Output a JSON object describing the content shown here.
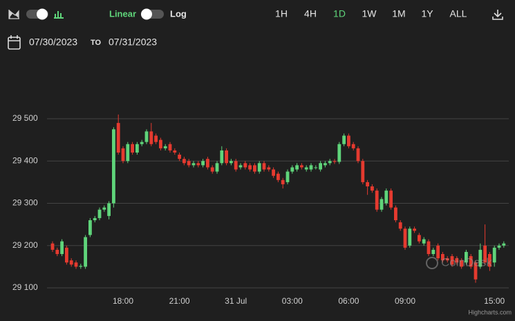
{
  "toolbar": {
    "linear": "Linear",
    "log": "Log",
    "ranges": [
      "1H",
      "4H",
      "1D",
      "1W",
      "1M",
      "1Y",
      "ALL"
    ],
    "active_range_index": 2
  },
  "date_range": {
    "from": "07/30/2023",
    "separator": "TO",
    "to": "07/31/2023"
  },
  "chart_data": {
    "type": "candlestick",
    "categories": [
      null,
      null,
      null,
      null,
      null,
      null,
      null,
      null,
      null,
      null,
      null,
      null,
      null,
      null,
      null,
      "18:00",
      null,
      null,
      null,
      null,
      null,
      null,
      null,
      null,
      null,
      null,
      null,
      "21:00",
      null,
      null,
      null,
      null,
      null,
      null,
      null,
      null,
      null,
      null,
      null,
      "31 Jul",
      null,
      null,
      null,
      null,
      null,
      null,
      null,
      null,
      null,
      null,
      null,
      "03:00",
      null,
      null,
      null,
      null,
      null,
      null,
      null,
      null,
      null,
      null,
      null,
      "06:00",
      null,
      null,
      null,
      null,
      null,
      null,
      null,
      null,
      null,
      null,
      null,
      "09:00",
      null,
      null,
      null,
      null,
      null,
      null,
      null,
      null,
      null,
      null,
      null,
      null,
      null,
      null,
      null,
      null,
      null,
      null,
      "15:00",
      null,
      null
    ],
    "open": [
      29205,
      29190,
      29180,
      29195,
      29165,
      29160,
      29150,
      29150,
      29225,
      29260,
      29265,
      29285,
      29270,
      29300,
      29490,
      29430,
      29400,
      29440,
      29420,
      29440,
      29445,
      29470,
      29460,
      29450,
      29430,
      29440,
      29425,
      29415,
      29405,
      29400,
      29390,
      29395,
      29390,
      29405,
      29385,
      29375,
      29395,
      29425,
      29395,
      29400,
      29385,
      29395,
      29390,
      29390,
      29375,
      29395,
      29385,
      29380,
      29370,
      29355,
      29350,
      29375,
      29380,
      29390,
      29380,
      29380,
      29385,
      29380,
      29390,
      29395,
      29400,
      29398,
      29440,
      29460,
      29440,
      29430,
      29400,
      29350,
      29340,
      29330,
      29285,
      29300,
      29330,
      29290,
      29255,
      29240,
      29200,
      29240,
      29225,
      29205,
      29210,
      29180,
      29200,
      29180,
      29170,
      29175,
      29170,
      29165,
      29160,
      29175,
      29160,
      29150,
      29200,
      29180,
      29160,
      29195,
      29200
    ],
    "high": [
      29210,
      29195,
      29215,
      29200,
      29170,
      29165,
      29157,
      29225,
      29265,
      29270,
      29290,
      29295,
      29305,
      29480,
      29510,
      29435,
      29445,
      29445,
      29445,
      29450,
      29475,
      29490,
      29465,
      29455,
      29440,
      29445,
      29430,
      29420,
      29410,
      29405,
      29400,
      29400,
      29405,
      29410,
      29390,
      29400,
      29435,
      29430,
      29405,
      29405,
      29395,
      29400,
      29395,
      29395,
      29400,
      29400,
      29390,
      29385,
      29375,
      29360,
      29380,
      29390,
      29395,
      29395,
      29390,
      29395,
      29390,
      29400,
      29400,
      29405,
      29405,
      29445,
      29465,
      29465,
      29445,
      29435,
      29405,
      29355,
      29345,
      29335,
      29315,
      29335,
      29335,
      29295,
      29260,
      29245,
      29245,
      29245,
      29230,
      29220,
      29215,
      29195,
      29205,
      29185,
      29175,
      29180,
      29175,
      29170,
      29190,
      29180,
      29165,
      29205,
      29250,
      29185,
      29200,
      29205,
      29210
    ],
    "low": [
      29185,
      29175,
      29175,
      29155,
      29150,
      29145,
      29145,
      29145,
      29220,
      29255,
      29260,
      29280,
      29262,
      29290,
      29415,
      29395,
      29395,
      29415,
      29415,
      29435,
      29440,
      29435,
      29440,
      29425,
      29425,
      29420,
      29415,
      29400,
      29390,
      29385,
      29385,
      29385,
      29385,
      29380,
      29370,
      29370,
      29390,
      29390,
      29390,
      29375,
      29380,
      29380,
      29375,
      29370,
      29370,
      29375,
      29375,
      29360,
      29350,
      29335,
      29345,
      29370,
      29375,
      29380,
      29375,
      29375,
      29380,
      29375,
      29385,
      29390,
      29393,
      29393,
      29435,
      29430,
      29425,
      29395,
      29345,
      29320,
      29325,
      29280,
      29280,
      29295,
      29285,
      29255,
      29235,
      29190,
      29195,
      29230,
      29205,
      29200,
      29175,
      29175,
      29165,
      29160,
      29160,
      29150,
      29155,
      29145,
      29155,
      29145,
      29112,
      29145,
      29155,
      29140,
      29150,
      29190,
      29195
    ],
    "close": [
      29190,
      29180,
      29210,
      29160,
      29155,
      29150,
      29152,
      29220,
      29260,
      29265,
      29285,
      29290,
      29300,
      29475,
      29420,
      29400,
      29440,
      29420,
      29440,
      29445,
      29470,
      29440,
      29445,
      29430,
      29435,
      29425,
      29420,
      29405,
      29395,
      29390,
      29395,
      29390,
      29400,
      29385,
      29375,
      29395,
      29425,
      29395,
      29400,
      29380,
      29390,
      29385,
      29380,
      29375,
      29395,
      29380,
      29380,
      29365,
      29355,
      29345,
      29375,
      29385,
      29390,
      29385,
      29385,
      29390,
      29385,
      29395,
      29395,
      29400,
      29398,
      29440,
      29460,
      29435,
      29430,
      29400,
      29350,
      29340,
      29330,
      29285,
      29310,
      29330,
      29290,
      29260,
      29240,
      29195,
      29240,
      29235,
      29210,
      29215,
      29180,
      29190,
      29170,
      29165,
      29165,
      29155,
      29160,
      29150,
      29185,
      29150,
      29120,
      29190,
      29160,
      29150,
      29195,
      29200,
      29205
    ],
    "up_color": "#5fd47a",
    "down_color": "#e53a2f",
    "ylim": [
      29080,
      29540
    ],
    "yticks": [
      {
        "value": 29100,
        "label": "29 100"
      },
      {
        "value": 29200,
        "label": "29 200"
      },
      {
        "value": 29300,
        "label": "29 300"
      },
      {
        "value": 29400,
        "label": "29 400"
      },
      {
        "value": 29500,
        "label": "29 500"
      }
    ],
    "grid": true,
    "watermark": "CoinDesk",
    "credits": "Highcharts.com"
  }
}
